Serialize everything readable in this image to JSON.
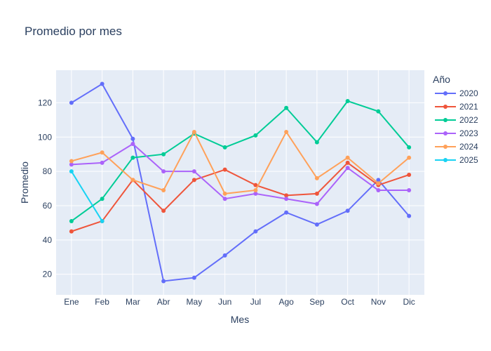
{
  "chart_data": {
    "type": "line",
    "title": "Promedio por mes",
    "xlabel": "Mes",
    "ylabel": "Promedio",
    "categories": [
      "Ene",
      "Feb",
      "Mar",
      "Abr",
      "May",
      "Jun",
      "Jul",
      "Ago",
      "Sep",
      "Oct",
      "Nov",
      "Dic"
    ],
    "ylim": [
      8,
      139
    ],
    "yticks": [
      20,
      40,
      60,
      80,
      100,
      120
    ],
    "grid": true,
    "legend": {
      "title": "Año",
      "placement": "right"
    },
    "background": "#e5ecf6",
    "series": [
      {
        "name": "2020",
        "color": "#636efa",
        "values": [
          120,
          131,
          99,
          16,
          18,
          31,
          45,
          56,
          49,
          57,
          75,
          54
        ]
      },
      {
        "name": "2021",
        "color": "#ef553b",
        "values": [
          45,
          51,
          75,
          57,
          75,
          81,
          72,
          66,
          67,
          85,
          72,
          78
        ]
      },
      {
        "name": "2022",
        "color": "#00cc96",
        "values": [
          51,
          64,
          88,
          90,
          102,
          94,
          101,
          117,
          97,
          121,
          115,
          94
        ]
      },
      {
        "name": "2023",
        "color": "#ab63fa",
        "values": [
          84,
          85,
          96,
          80,
          80,
          64,
          67,
          64,
          61,
          82,
          69,
          69
        ]
      },
      {
        "name": "2024",
        "color": "#ffa15a",
        "values": [
          86,
          91,
          75,
          69,
          103,
          67,
          69,
          103,
          76,
          88,
          73,
          88
        ]
      },
      {
        "name": "2025",
        "color": "#19d3f3",
        "values": [
          80,
          51,
          null,
          null,
          null,
          null,
          null,
          null,
          null,
          null,
          null,
          null
        ]
      }
    ]
  }
}
